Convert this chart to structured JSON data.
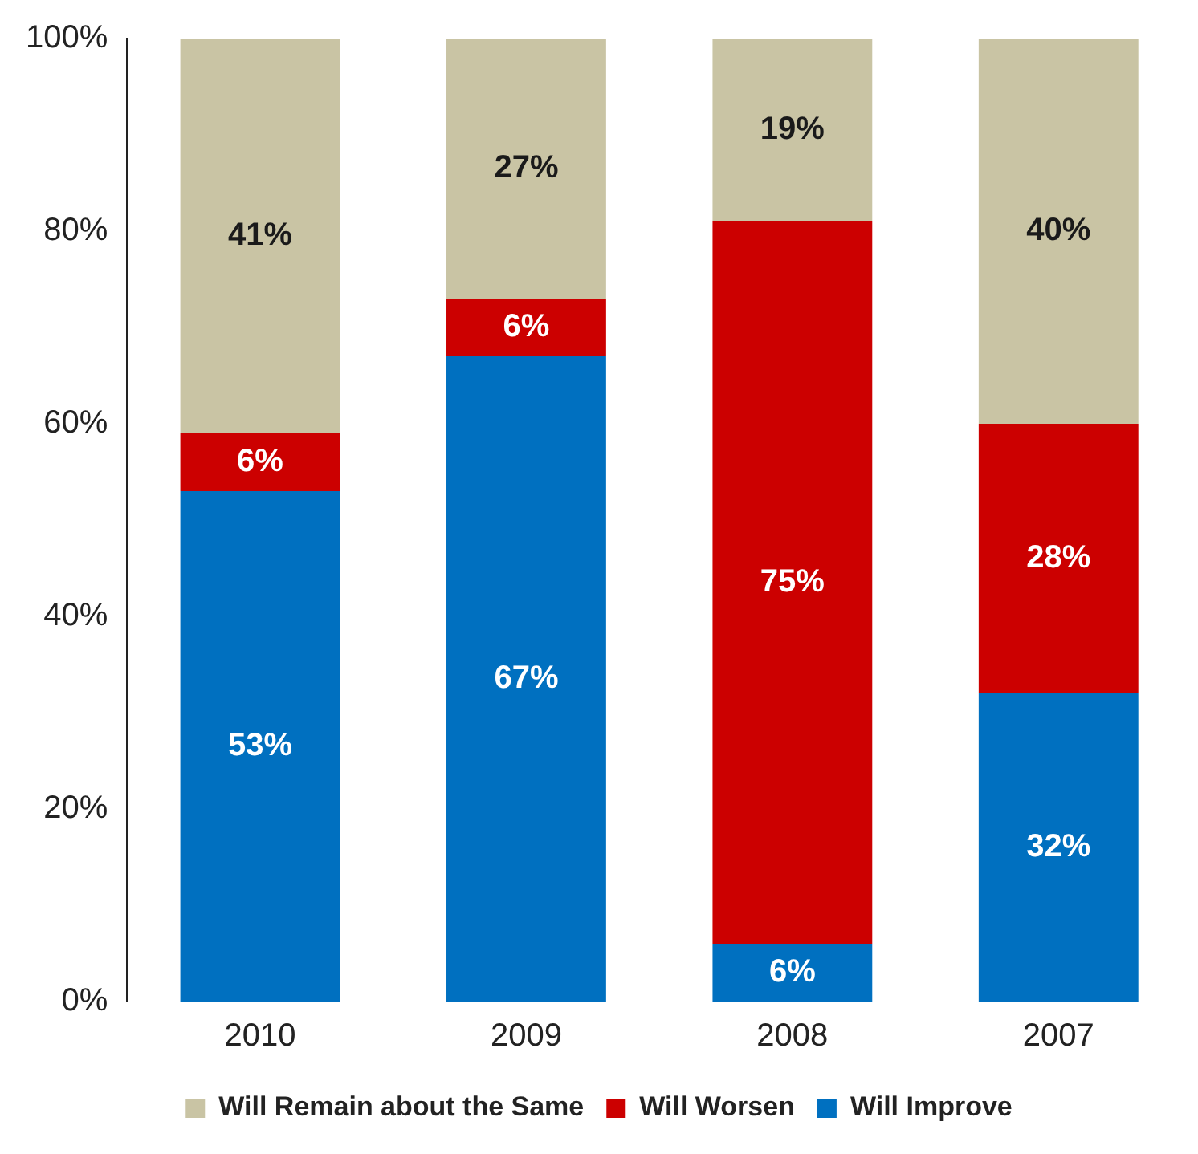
{
  "chart_data": {
    "type": "bar",
    "stacked": true,
    "categories": [
      "2010",
      "2009",
      "2008",
      "2007"
    ],
    "series": [
      {
        "name": "Will Improve",
        "color": "#0070c0",
        "values": [
          53,
          67,
          6,
          32
        ],
        "value_labels": [
          "53%",
          "67%",
          "6%",
          "32%"
        ]
      },
      {
        "name": "Will Worsen",
        "color": "#cc0000",
        "values": [
          6,
          6,
          75,
          28
        ],
        "value_labels": [
          "6%",
          "6%",
          "75%",
          "28%"
        ]
      },
      {
        "name": "Will Remain about the Same",
        "color": "#c9c4a4",
        "values": [
          41,
          27,
          19,
          40
        ],
        "value_labels": [
          "41%",
          "27%",
          "19%",
          "40%"
        ]
      }
    ],
    "ylim": [
      0,
      100
    ],
    "yticks": [
      {
        "value": 0,
        "label": "0%"
      },
      {
        "value": 20,
        "label": "20%"
      },
      {
        "value": 40,
        "label": "40%"
      },
      {
        "value": 60,
        "label": "60%"
      },
      {
        "value": 80,
        "label": "80%"
      },
      {
        "value": 100,
        "label": "100%"
      }
    ],
    "grid": false,
    "legend": "bottom"
  }
}
